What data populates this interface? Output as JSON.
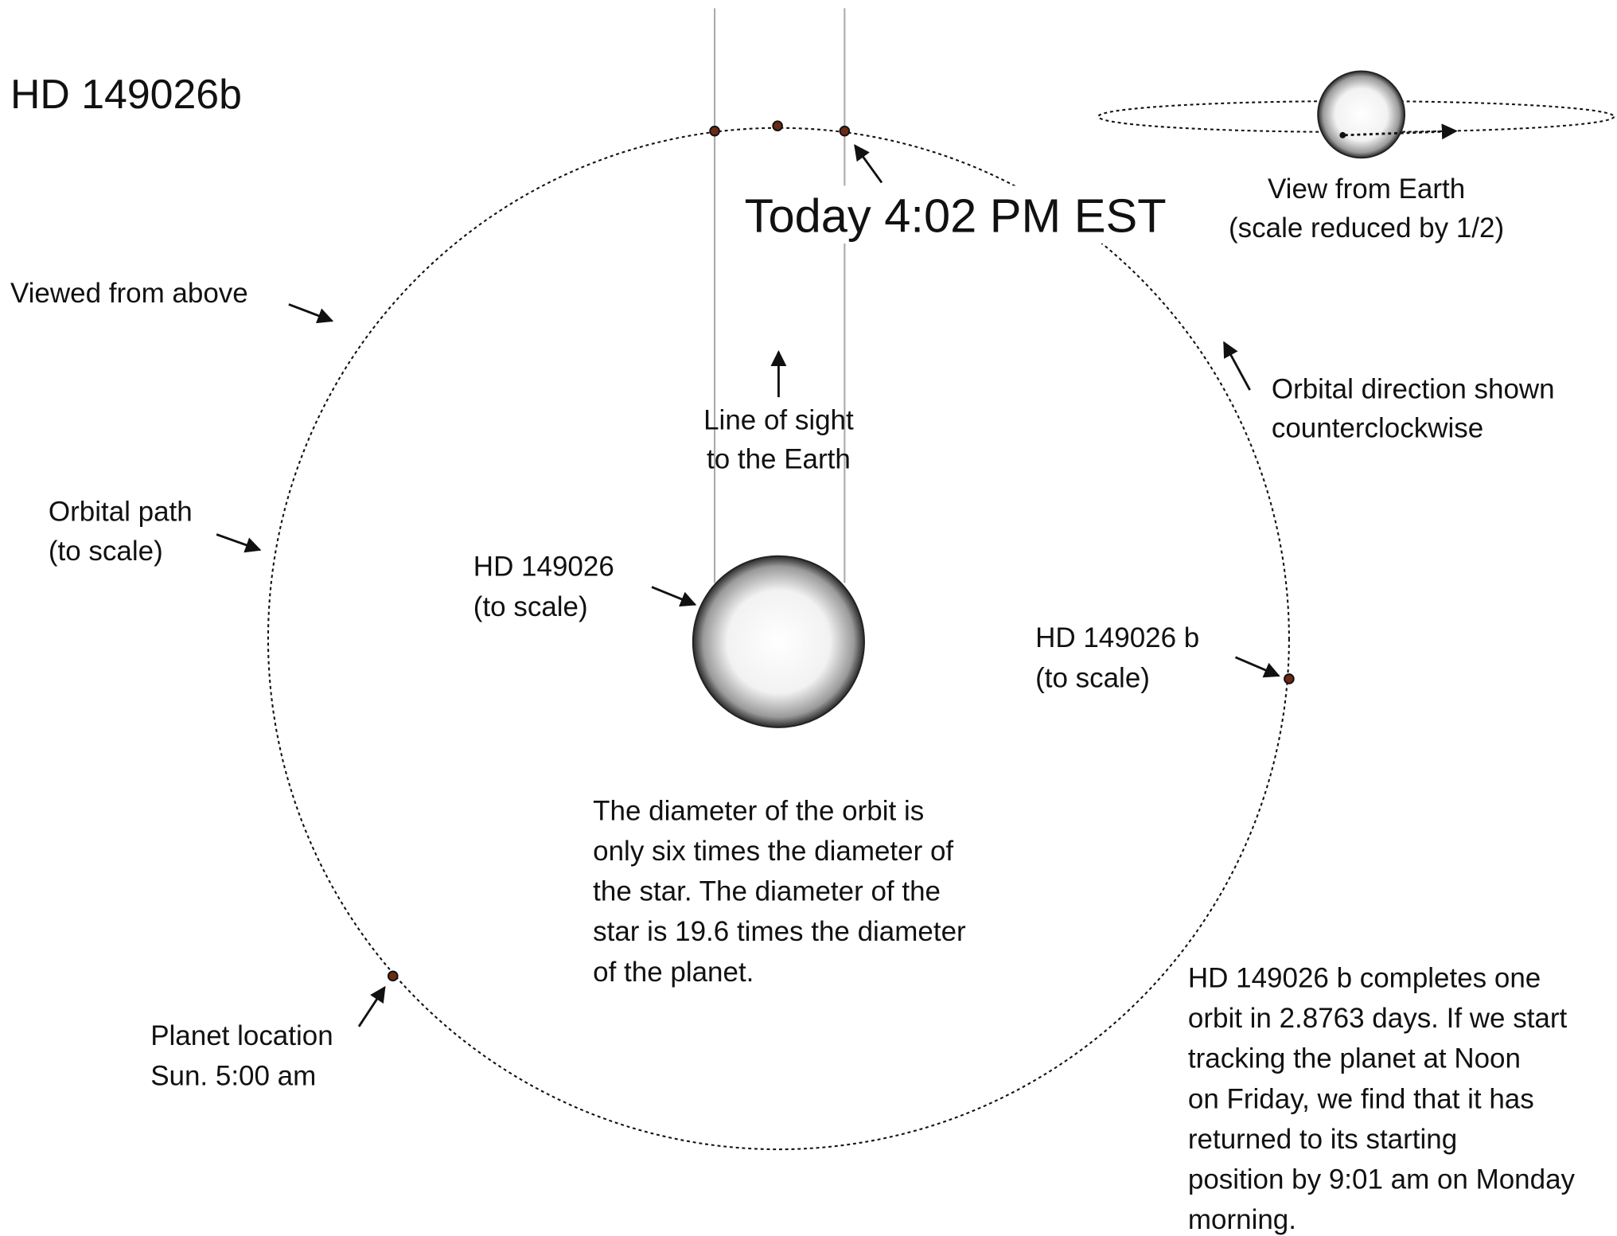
{
  "title": "HD 149026b",
  "timestamp": "Today 4:02 PM EST",
  "labels": {
    "earth_view": [
      "View from Earth",
      "(scale reduced by 1/2)"
    ],
    "viewed_from_above": [
      "Viewed from above"
    ],
    "orbital_direction": [
      "Orbital direction shown",
      "counterclockwise"
    ],
    "line_of_sight": [
      "Line of sight",
      "to the Earth"
    ],
    "orbital_path": [
      "Orbital path",
      "(to scale)"
    ],
    "star": [
      "HD 149026",
      "(to scale)"
    ],
    "planet": [
      "HD 149026 b",
      "(to scale)"
    ],
    "planet_location": [
      "Planet location",
      "Sun. 5:00 am"
    ],
    "diameter_note": [
      "The diameter of the orbit is",
      "only six times the diameter of",
      "the star. The diameter of the",
      "star is 19.6 times the diameter",
      "of the planet."
    ],
    "period_note": [
      "HD 149026 b completes one",
      "orbit in 2.8763 days. If we start",
      "tracking the planet at Noon",
      "on Friday, we find that it has",
      "returned to its starting",
      "position by 9:01 am on Monday",
      "morning."
    ]
  }
}
